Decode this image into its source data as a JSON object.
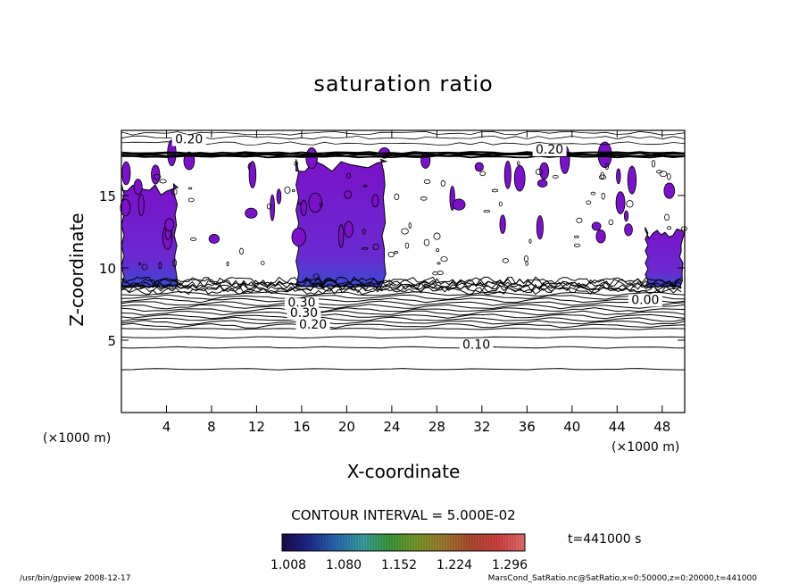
{
  "chart_data": {
    "type": "contour",
    "title": "saturation ratio",
    "xlabel": "X-coordinate",
    "ylabel": "Z-coordinate",
    "x_unit": "(×1000 m)",
    "y_unit": "(×1000 m)",
    "xlim": [
      0,
      50
    ],
    "ylim": [
      0,
      19.5
    ],
    "x_ticks": [
      4,
      8,
      12,
      16,
      20,
      24,
      28,
      32,
      36,
      40,
      44,
      48
    ],
    "y_ticks": [
      5,
      10,
      15
    ],
    "contour_interval_label": "CONTOUR INTERVAL = 5.000E-02",
    "time_label": "t=441000 s",
    "contour_labels": [
      {
        "text": "0.20",
        "x": 6.0,
        "z": 18.6
      },
      {
        "text": "0.20",
        "x": 38.0,
        "z": 17.9
      },
      {
        "text": "0.30",
        "x": 16.0,
        "z": 7.3
      },
      {
        "text": "0.30",
        "x": 16.2,
        "z": 6.6
      },
      {
        "text": "0.20",
        "x": 17.0,
        "z": 5.8
      },
      {
        "text": "0.10",
        "x": 31.5,
        "z": 4.4
      },
      {
        "text": "0.00",
        "x": 46.5,
        "z": 7.5
      }
    ],
    "supersaturated_regions": [
      {
        "x": [
          0,
          5.0
        ],
        "z": [
          8.7,
          15.8
        ]
      },
      {
        "x": [
          15.5,
          23.5
        ],
        "z": [
          8.7,
          17.5
        ]
      },
      {
        "x": [
          46.5,
          50
        ],
        "z": [
          8.7,
          12.8
        ]
      }
    ],
    "colorbar": {
      "ticks": [
        "1.008",
        "1.080",
        "1.152",
        "1.224",
        "1.296"
      ],
      "colors": [
        "#1a0a4a",
        "#1f2a8f",
        "#2a6ab0",
        "#3aa0a0",
        "#3a9a3a",
        "#7a9a2a",
        "#a07a30",
        "#b04a30",
        "#d04040",
        "#e87070"
      ]
    },
    "footer_left": "/usr/bin/gpview  2008-12-17",
    "footer_right": "MarsCond_SatRatio.nc@SatRatio,x=0:50000,z=0:20000,t=441000"
  }
}
